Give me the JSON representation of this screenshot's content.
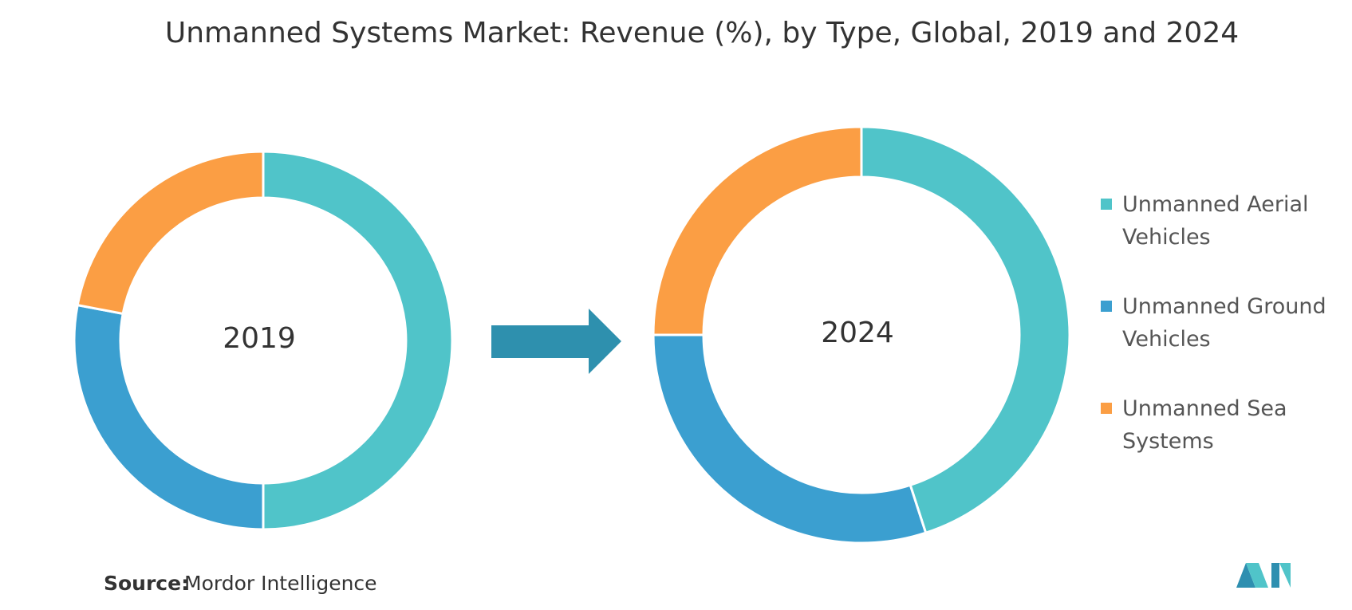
{
  "title": "Unmanned Systems Market: Revenue (%), by Type, Global, 2019 and 2024",
  "source_label": "Source:",
  "source": "Mordor Intelligence",
  "chart_data": [
    {
      "type": "donut",
      "label": "2019",
      "categories": [
        "Unmanned Aerial Vehicles",
        "Unmanned Ground Vehicles",
        "Unmanned Sea Systems"
      ],
      "colors": [
        "#50c4c9",
        "#3b9fd0",
        "#fb9e44"
      ],
      "values": [
        50,
        28,
        22
      ]
    },
    {
      "type": "donut",
      "label": "2024",
      "categories": [
        "Unmanned Aerial Vehicles",
        "Unmanned Ground Vehicles",
        "Unmanned Sea Systems"
      ],
      "colors": [
        "#50c4c9",
        "#3b9fd0",
        "#fb9e44"
      ],
      "values": [
        45,
        30,
        25
      ]
    }
  ]
}
